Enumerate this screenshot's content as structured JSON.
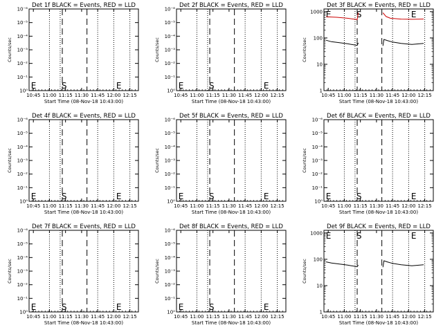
{
  "chart_data": [
    {
      "type": "line",
      "title": "Det 1f BLACK = Events, RED = LLD",
      "xlabel": "Start Time (08-Nov-18 10:43:00)",
      "ylabel": "Counts/sec",
      "y_scale": "log",
      "xtick_labels": [
        "10:45",
        "11:00",
        "11:15",
        "11:30",
        "11:45",
        "12:00",
        "12:15"
      ],
      "ytick_labels": [
        "10⁰",
        "10⁻¹",
        "10⁻²",
        "10⁻³",
        "10⁻⁴",
        "10⁻⁵",
        "10⁻⁶"
      ],
      "markers": [
        "E",
        "S",
        "E"
      ],
      "series": []
    },
    {
      "type": "line",
      "title": "Det 2f BLACK = Events, RED = LLD",
      "xlabel": "Start Time (08-Nov-18 10:43:00)",
      "ylabel": "Counts/sec",
      "y_scale": "log",
      "xtick_labels": [
        "10:45",
        "11:00",
        "11:15",
        "11:30",
        "11:45",
        "12:00",
        "12:15"
      ],
      "ytick_labels": [
        "10⁰",
        "10⁻¹",
        "10⁻²",
        "10⁻³",
        "10⁻⁴",
        "10⁻⁵",
        "10⁻⁶"
      ],
      "markers": [
        "E",
        "S",
        "E"
      ],
      "series": []
    },
    {
      "type": "line",
      "title": "Det 3f BLACK = Events, RED = LLD",
      "xlabel": "Start Time (08-Nov-18 10:43:00)",
      "ylabel": "Counts/sec",
      "y_scale": "log",
      "xtick_labels": [
        "10:45",
        "11:00",
        "11:15",
        "11:30",
        "11:45",
        "12:00",
        "12:15"
      ],
      "ytick_labels": [
        "1000",
        "100",
        "10",
        "1"
      ],
      "markers": [
        "E",
        "S",
        "E"
      ],
      "series": [
        {
          "color": "#cc0000",
          "segments": [
            [
              [
                0,
                640
              ],
              [
                10,
                610
              ],
              [
                20,
                560
              ],
              [
                29,
                500
              ],
              [
                30,
                900
              ]
            ],
            [
              [
                53,
                900
              ],
              [
                56,
                650
              ],
              [
                60,
                560
              ],
              [
                70,
                520
              ],
              [
                80,
                510
              ],
              [
                91,
                525
              ]
            ]
          ]
        },
        {
          "color": "#000000",
          "segments": [
            [
              [
                0,
                82
              ],
              [
                5,
                72
              ],
              [
                10,
                68
              ],
              [
                20,
                60
              ],
              [
                28,
                53
              ],
              [
                29,
                52
              ],
              [
                30,
                65
              ]
            ],
            [
              [
                53,
                50
              ],
              [
                54,
                88
              ],
              [
                57,
                80
              ],
              [
                62,
                70
              ],
              [
                70,
                62
              ],
              [
                80,
                57
              ],
              [
                91,
                62
              ]
            ]
          ]
        }
      ]
    },
    {
      "type": "line",
      "title": "Det 4f BLACK = Events, RED = LLD",
      "xlabel": "Start Time (08-Nov-18 10:43:00)",
      "ylabel": "Counts/sec",
      "y_scale": "log",
      "xtick_labels": [
        "10:45",
        "11:00",
        "11:15",
        "11:30",
        "11:45",
        "12:00",
        "12:15"
      ],
      "ytick_labels": [
        "10⁰",
        "10⁻¹",
        "10⁻²",
        "10⁻³",
        "10⁻⁴",
        "10⁻⁵",
        "10⁻⁶"
      ],
      "markers": [
        "E",
        "S",
        "E"
      ],
      "series": []
    },
    {
      "type": "line",
      "title": "Det 5f BLACK = Events, RED = LLD",
      "xlabel": "Start Time (08-Nov-18 10:43:00)",
      "ylabel": "Counts/sec",
      "y_scale": "log",
      "xtick_labels": [
        "10:45",
        "11:00",
        "11:15",
        "11:30",
        "11:45",
        "12:00",
        "12:15"
      ],
      "ytick_labels": [
        "10⁰",
        "10⁻¹",
        "10⁻²",
        "10⁻³",
        "10⁻⁴",
        "10⁻⁵",
        "10⁻⁶"
      ],
      "markers": [
        "E",
        "S",
        "E"
      ],
      "series": []
    },
    {
      "type": "line",
      "title": "Det 6f BLACK = Events, RED = LLD",
      "xlabel": "Start Time (08-Nov-18 10:43:00)",
      "ylabel": "Counts/sec",
      "y_scale": "log",
      "xtick_labels": [
        "10:45",
        "11:00",
        "11:15",
        "11:30",
        "11:45",
        "12:00",
        "12:15"
      ],
      "ytick_labels": [
        "10⁰",
        "10⁻¹",
        "10⁻²",
        "10⁻³",
        "10⁻⁴",
        "10⁻⁵",
        "10⁻⁶"
      ],
      "markers": [
        "E",
        "S",
        "E"
      ],
      "series": []
    },
    {
      "type": "line",
      "title": "Det 7f BLACK = Events, RED = LLD",
      "xlabel": "Start Time (08-Nov-18 10:43:00)",
      "ylabel": "Counts/sec",
      "y_scale": "log",
      "xtick_labels": [
        "10:45",
        "11:00",
        "11:15",
        "11:30",
        "11:45",
        "12:00",
        "12:15"
      ],
      "ytick_labels": [
        "10⁰",
        "10⁻¹",
        "10⁻²",
        "10⁻³",
        "10⁻⁴",
        "10⁻⁵",
        "10⁻⁶"
      ],
      "markers": [
        "E",
        "S",
        "E"
      ],
      "series": []
    },
    {
      "type": "line",
      "title": "Det 8f BLACK = Events, RED = LLD",
      "xlabel": "Start Time (08-Nov-18 10:43:00)",
      "ylabel": "Counts/sec",
      "y_scale": "log",
      "xtick_labels": [
        "10:45",
        "11:00",
        "11:15",
        "11:30",
        "11:45",
        "12:00",
        "12:15"
      ],
      "ytick_labels": [
        "10⁰",
        "10⁻¹",
        "10⁻²",
        "10⁻³",
        "10⁻⁴",
        "10⁻⁵",
        "10⁻⁶"
      ],
      "markers": [
        "E",
        "S",
        "E"
      ],
      "series": []
    },
    {
      "type": "line",
      "title": "Det 9f BLACK = Events, RED = LLD",
      "xlabel": "Start Time (08-Nov-18 10:43:00)",
      "ylabel": "Counts/sec",
      "y_scale": "log",
      "xtick_labels": [
        "10:45",
        "11:00",
        "11:15",
        "11:30",
        "11:45",
        "12:00",
        "12:15"
      ],
      "ytick_labels": [
        "1000",
        "100",
        "10",
        "1"
      ],
      "markers": [
        "E",
        "S",
        "E"
      ],
      "series": [
        {
          "color": "#000000",
          "segments": [
            [
              [
                0,
                80
              ],
              [
                5,
                72
              ],
              [
                10,
                68
              ],
              [
                20,
                60
              ],
              [
                28,
                53
              ],
              [
                29,
                52
              ],
              [
                30,
                60
              ]
            ],
            [
              [
                53,
                50
              ],
              [
                54,
                88
              ],
              [
                57,
                80
              ],
              [
                62,
                70
              ],
              [
                70,
                62
              ],
              [
                80,
                57
              ],
              [
                91,
                62
              ]
            ]
          ]
        }
      ]
    }
  ]
}
